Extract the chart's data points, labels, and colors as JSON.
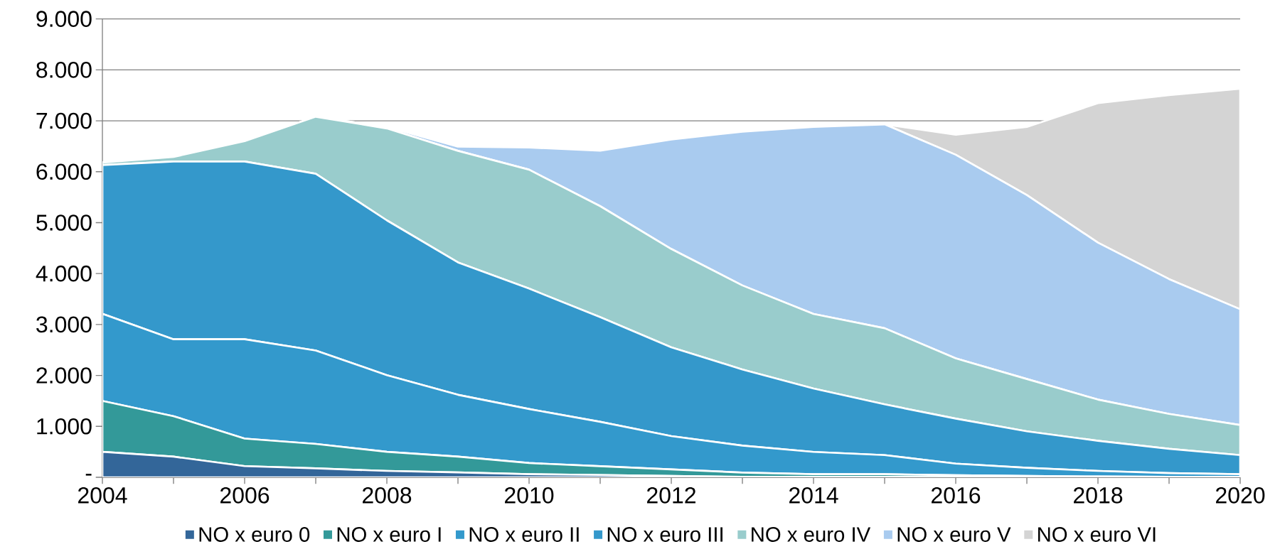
{
  "chart_data": {
    "type": "area",
    "stacked": true,
    "x": [
      2004,
      2005,
      2006,
      2007,
      2008,
      2009,
      2010,
      2011,
      2012,
      2013,
      2014,
      2015,
      2016,
      2017,
      2018,
      2019,
      2020
    ],
    "series": [
      {
        "name": "NO x euro 0",
        "color": "#336699",
        "values": [
          500,
          405,
          220,
          175,
          125,
          95,
          60,
          45,
          25,
          10,
          5,
          5,
          3,
          2,
          1,
          1,
          0
        ]
      },
      {
        "name": "NO x euro I",
        "color": "#339999",
        "values": [
          1000,
          795,
          540,
          480,
          375,
          310,
          220,
          173,
          131,
          83,
          55,
          55,
          37,
          23,
          14,
          9,
          5
        ]
      },
      {
        "name": "NO x euro II",
        "color": "#3399cc",
        "values": [
          1710,
          1510,
          1950,
          1835,
          1505,
          1215,
          1060,
          872,
          653,
          530,
          438,
          376,
          228,
          162,
          110,
          71,
          57
        ]
      },
      {
        "name": "NO x euro III",
        "color": "#3498cb",
        "values": [
          2920,
          3490,
          3490,
          3470,
          3040,
          2600,
          2365,
          2054,
          1744,
          1494,
          1245,
          996,
          884,
          716,
          591,
          479,
          374
        ]
      },
      {
        "name": "NO x euro IV",
        "color": "#99cccc",
        "values": [
          50,
          90,
          400,
          1120,
          1805,
          2190,
          2335,
          2180,
          1930,
          1650,
          1464,
          1495,
          1183,
          1027,
          810,
          685,
          591
        ]
      },
      {
        "name": "NO x euro V",
        "color": "#a9cbef",
        "values": [
          0,
          0,
          0,
          0,
          30,
          84,
          436,
          1089,
          2148,
          3020,
          3673,
          4003,
          3998,
          3612,
          3082,
          2647,
          2273
        ]
      },
      {
        "name": "NO x euro VI",
        "color": "#d4d4d4",
        "values": [
          0,
          0,
          0,
          0,
          0,
          0,
          0,
          0,
          0,
          0,
          0,
          0,
          392,
          1338,
          2739,
          3611,
          4328
        ]
      }
    ],
    "xlim": [
      2004,
      2020
    ],
    "xticks": [
      2004,
      {
        "value": 2005,
        "label": null
      },
      2006,
      {
        "value": 2007,
        "label": null
      },
      2008,
      {
        "value": 2009,
        "label": null
      },
      2010,
      {
        "value": 2011,
        "label": null
      },
      2012,
      {
        "value": 2013,
        "label": null
      },
      2014,
      {
        "value": 2015,
        "label": null
      },
      2016,
      {
        "value": 2017,
        "label": null
      },
      2018,
      {
        "value": 2019,
        "label": null
      },
      2020
    ],
    "ylim": [
      0,
      9000
    ],
    "yticks": [
      {
        "value": 0,
        "label": "-"
      },
      {
        "value": 1000,
        "label": "1.000"
      },
      {
        "value": 2000,
        "label": "2.000"
      },
      {
        "value": 3000,
        "label": "3.000"
      },
      {
        "value": 4000,
        "label": "4.000"
      },
      {
        "value": 5000,
        "label": "5.000"
      },
      {
        "value": 6000,
        "label": "6.000"
      },
      {
        "value": 7000,
        "label": "7.000"
      },
      {
        "value": 8000,
        "label": "8.000"
      },
      {
        "value": 9000,
        "label": "9.000"
      }
    ],
    "grid": "y",
    "legend": "bottom"
  }
}
